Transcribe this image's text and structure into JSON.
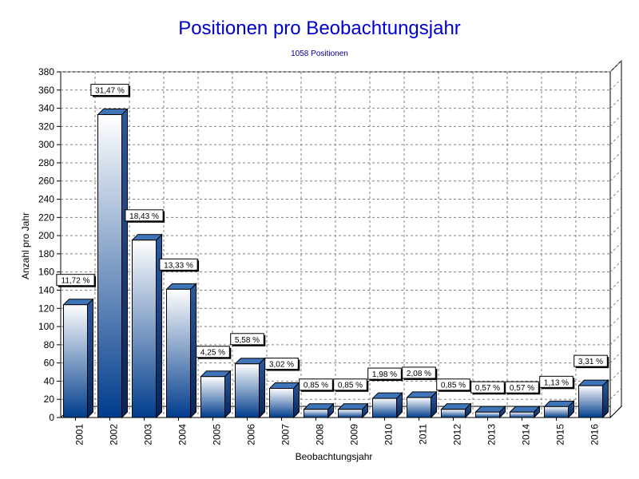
{
  "chart_data": {
    "type": "bar",
    "title": "Positionen pro Beobachtungsjahr",
    "subtitle": "1058 Positionen",
    "xlabel": "Beobachtungsjahr",
    "ylabel": "Anzahl pro Jahr",
    "ylim": [
      0,
      380
    ],
    "ytick_step": 20,
    "grid": true,
    "categories": [
      "2001",
      "2002",
      "2003",
      "2004",
      "2005",
      "2006",
      "2007",
      "2008",
      "2009",
      "2010",
      "2011",
      "2012",
      "2013",
      "2014",
      "2015",
      "2016"
    ],
    "values": [
      124,
      333,
      195,
      141,
      45,
      59,
      32,
      9,
      9,
      21,
      22,
      9,
      6,
      6,
      12,
      35
    ],
    "data_labels": [
      "11,72 %",
      "31,47 %",
      "18,43 %",
      "13,33 %",
      "4,25 %",
      "5,58 %",
      "3,02 %",
      "0,85 %",
      "0,85 %",
      "1,98 %",
      "2,08 %",
      "0,85 %",
      "0,57 %",
      "0,57 %",
      "1,13 %",
      "3,31 %"
    ],
    "colors": {
      "bar_top": "#ffffff",
      "bar_bottom": "#003c8c",
      "bar_side": "#0c2f6e",
      "bar_cap": "#3f74b8",
      "title": "#0000cc",
      "grid": "#808080"
    }
  }
}
